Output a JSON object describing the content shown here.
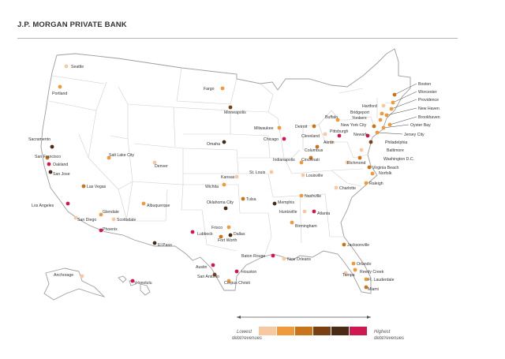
{
  "header": {
    "brand": "J.P. MORGAN PRIVATE BANK"
  },
  "colors": {
    "land": "#ffffff",
    "border": "#c9c9c9",
    "level_1": "#f6c9a2",
    "level_2": "#ef9a3b",
    "level_3": "#c8741a",
    "level_4": "#7b3f14",
    "level_5": "#4a2a14",
    "level_6": "#d01850"
  },
  "legend": {
    "low_label_1": "Lowest",
    "low_label_2": "debt/revenues",
    "high_label_1": "Highest",
    "high_label_2": "debt/revenues",
    "levels": [
      "level_1",
      "level_2",
      "level_3",
      "level_4",
      "level_5",
      "level_6"
    ]
  },
  "cities": [
    {
      "name": "Seattle",
      "level": "level_1"
    },
    {
      "name": "Portland",
      "level": "level_2"
    },
    {
      "name": "Sacramento",
      "level": "level_5"
    },
    {
      "name": "San Francisco",
      "level": "level_3"
    },
    {
      "name": "Oakland",
      "level": "level_6"
    },
    {
      "name": "San Jose",
      "level": "level_5"
    },
    {
      "name": "Los Angeles",
      "level": "level_6"
    },
    {
      "name": "San Diego",
      "level": "level_1"
    },
    {
      "name": "Las Vegas",
      "level": "level_3"
    },
    {
      "name": "Salt Lake City",
      "level": "level_2"
    },
    {
      "name": "Glendale",
      "level": "level_2"
    },
    {
      "name": "Scottsdale",
      "level": "level_1"
    },
    {
      "name": "Phoenix",
      "level": "level_6"
    },
    {
      "name": "Albuquerque",
      "level": "level_2"
    },
    {
      "name": "Denver",
      "level": "level_1"
    },
    {
      "name": "El Paso",
      "level": "level_5"
    },
    {
      "name": "Fargo",
      "level": "level_2"
    },
    {
      "name": "Minneapolis",
      "level": "level_4"
    },
    {
      "name": "Omaha",
      "level": "level_5"
    },
    {
      "name": "Kansas",
      "level": "level_1"
    },
    {
      "name": "Wichita",
      "level": "level_2"
    },
    {
      "name": "Oklahoma City",
      "level": "level_5"
    },
    {
      "name": "Tulsa",
      "level": "level_3"
    },
    {
      "name": "Lubbock",
      "level": "level_6"
    },
    {
      "name": "Frisco",
      "level": "level_2"
    },
    {
      "name": "Dallas",
      "level": "level_5"
    },
    {
      "name": "Fort Worth",
      "level": "level_3"
    },
    {
      "name": "Austin",
      "level": "level_6"
    },
    {
      "name": "San Antonio",
      "level": "level_4"
    },
    {
      "name": "Houston",
      "level": "level_6"
    },
    {
      "name": "Corpus Christi",
      "level": "level_2"
    },
    {
      "name": "Milwaukee",
      "level": "level_2"
    },
    {
      "name": "Chicago",
      "level": "level_6"
    },
    {
      "name": "St. Louis",
      "level": "level_1"
    },
    {
      "name": "Indianapolis",
      "level": "level_2"
    },
    {
      "name": "Memphis",
      "level": "level_5"
    },
    {
      "name": "Baton Rouge",
      "level": "level_6"
    },
    {
      "name": "New Orleans",
      "level": "level_1"
    },
    {
      "name": "Detroit",
      "level": "level_3"
    },
    {
      "name": "Cleveland",
      "level": "level_1"
    },
    {
      "name": "Columbus",
      "level": "level_3"
    },
    {
      "name": "Cincinnati",
      "level": "level_3"
    },
    {
      "name": "Louisville",
      "level": "level_1"
    },
    {
      "name": "Nashville",
      "level": "level_2"
    },
    {
      "name": "Huntsville",
      "level": "level_1"
    },
    {
      "name": "Atlanta",
      "level": "level_6"
    },
    {
      "name": "Birmingham",
      "level": "level_2"
    },
    {
      "name": "Jacksonville",
      "level": "level_3"
    },
    {
      "name": "Orlando",
      "level": "level_2"
    },
    {
      "name": "Tampa",
      "level": "level_1"
    },
    {
      "name": "Reedy Creek",
      "level": "level_2"
    },
    {
      "name": "Ft. Lauderdale",
      "level": "level_2"
    },
    {
      "name": "Miami",
      "level": "level_3"
    },
    {
      "name": "Charlotte",
      "level": "level_1"
    },
    {
      "name": "Raleigh",
      "level": "level_2"
    },
    {
      "name": "Richmond",
      "level": "level_1"
    },
    {
      "name": "Virginia Beach",
      "level": "level_3"
    },
    {
      "name": "Norfolk",
      "level": "level_2"
    },
    {
      "name": "Washington D.C.",
      "level": "level_3"
    },
    {
      "name": "Baltimore",
      "level": "level_1"
    },
    {
      "name": "Philadelphia",
      "level": "level_4"
    },
    {
      "name": "Pittsburgh",
      "level": "level_6"
    },
    {
      "name": "Akron",
      "level": "level_1"
    },
    {
      "name": "Buffalo",
      "level": "level_2"
    },
    {
      "name": "New York City",
      "level": "level_3"
    },
    {
      "name": "Newark",
      "level": "level_6"
    },
    {
      "name": "Jersey City",
      "level": "level_2"
    },
    {
      "name": "Yonkers",
      "level": "level_2"
    },
    {
      "name": "Bridgeport",
      "level": "level_2"
    },
    {
      "name": "Hartford",
      "level": "level_1"
    },
    {
      "name": "New Haven",
      "level": "level_2"
    },
    {
      "name": "Providence",
      "level": "level_2"
    },
    {
      "name": "Worcester",
      "level": "level_2"
    },
    {
      "name": "Boston",
      "level": "level_3"
    },
    {
      "name": "Brookhaven",
      "level": "level_2"
    },
    {
      "name": "Oyster Bay",
      "level": "level_2"
    },
    {
      "name": "Anchorage",
      "level": "level_1"
    },
    {
      "name": "Honolulu",
      "level": "level_6"
    }
  ]
}
